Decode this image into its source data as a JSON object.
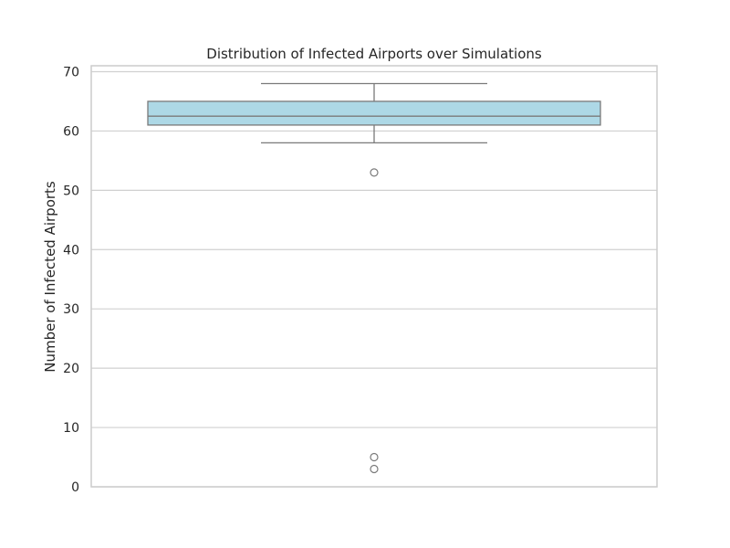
{
  "chart_data": {
    "type": "box",
    "title": "Distribution of Infected Airports over Simulations",
    "xlabel": "",
    "ylabel": "Number of Infected Airports",
    "ylim": [
      0,
      71
    ],
    "yticks": [
      0,
      10,
      20,
      30,
      40,
      50,
      60,
      70
    ],
    "grid": true,
    "box": {
      "whisker_low": 58,
      "q1": 61,
      "median": 62.5,
      "q3": 65,
      "whisker_high": 68,
      "outliers": [
        53,
        5,
        3
      ]
    },
    "colors": {
      "box_fill": "#add8e6",
      "box_edge": "#7a7a7a",
      "grid": "#d0d0d0",
      "axes_edge": "#cccccc"
    }
  }
}
